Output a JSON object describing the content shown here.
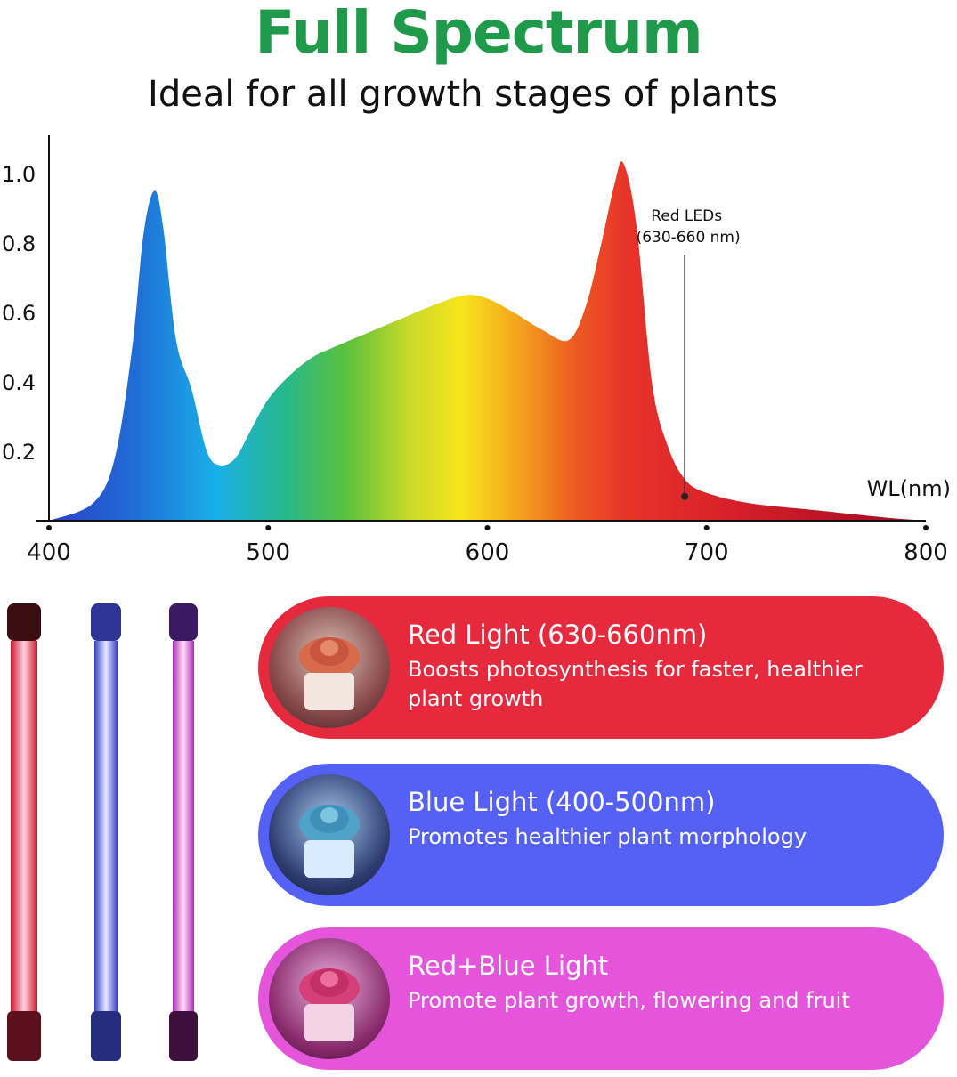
{
  "header": {
    "title": "Full Spectrum",
    "subtitle": "Ideal for all growth stages of plants"
  },
  "colors": {
    "title": "#1f9a4b",
    "red_card": "#e52a3e",
    "blue_card": "#5460f6",
    "pink_card": "#e455dc"
  },
  "chart_data": {
    "type": "area",
    "x": [
      400,
      420,
      430,
      438,
      443,
      448,
      452,
      458,
      465,
      472,
      478,
      485,
      492,
      500,
      510,
      520,
      530,
      545,
      560,
      575,
      590,
      600,
      612,
      625,
      637,
      645,
      652,
      658,
      662,
      668,
      675,
      682,
      690,
      700,
      720,
      750,
      780,
      800
    ],
    "y": [
      0.0,
      0.05,
      0.18,
      0.5,
      0.82,
      0.95,
      0.85,
      0.52,
      0.38,
      0.2,
      0.16,
      0.18,
      0.26,
      0.35,
      0.42,
      0.47,
      0.5,
      0.54,
      0.58,
      0.62,
      0.65,
      0.64,
      0.6,
      0.55,
      0.52,
      0.62,
      0.8,
      0.97,
      1.03,
      0.85,
      0.4,
      0.22,
      0.12,
      0.08,
      0.05,
      0.03,
      0.01,
      0.0
    ],
    "xlabel": "WL(nm)",
    "xticks": [
      400,
      500,
      600,
      700,
      800
    ],
    "xtick_labels": [
      "400",
      "500",
      "600",
      "700",
      "800"
    ],
    "yticks": [
      0.2,
      0.4,
      0.6,
      0.8,
      1.0
    ],
    "ytick_labels": [
      "0.2",
      "0.4",
      "0.6",
      "0.8",
      "1.0"
    ],
    "xlim": [
      400,
      800
    ],
    "ylim": [
      0,
      1.1
    ],
    "fill": "rainbow gradient by wavelength",
    "grid": false,
    "annotation": {
      "line1": "Red LEDs",
      "line2": "(630-660 nm)",
      "x": 690,
      "y": 0.07
    }
  },
  "cards": [
    {
      "title": "Red Light (630-660nm)",
      "desc": "Boosts photosynthesis for faster, healthier plant growth"
    },
    {
      "title": "Blue Light (400-500nm)",
      "desc": "Promotes healthier plant morphology"
    },
    {
      "title": "Red+Blue Light",
      "desc": "Promote plant growth, flowering and fruit"
    }
  ]
}
